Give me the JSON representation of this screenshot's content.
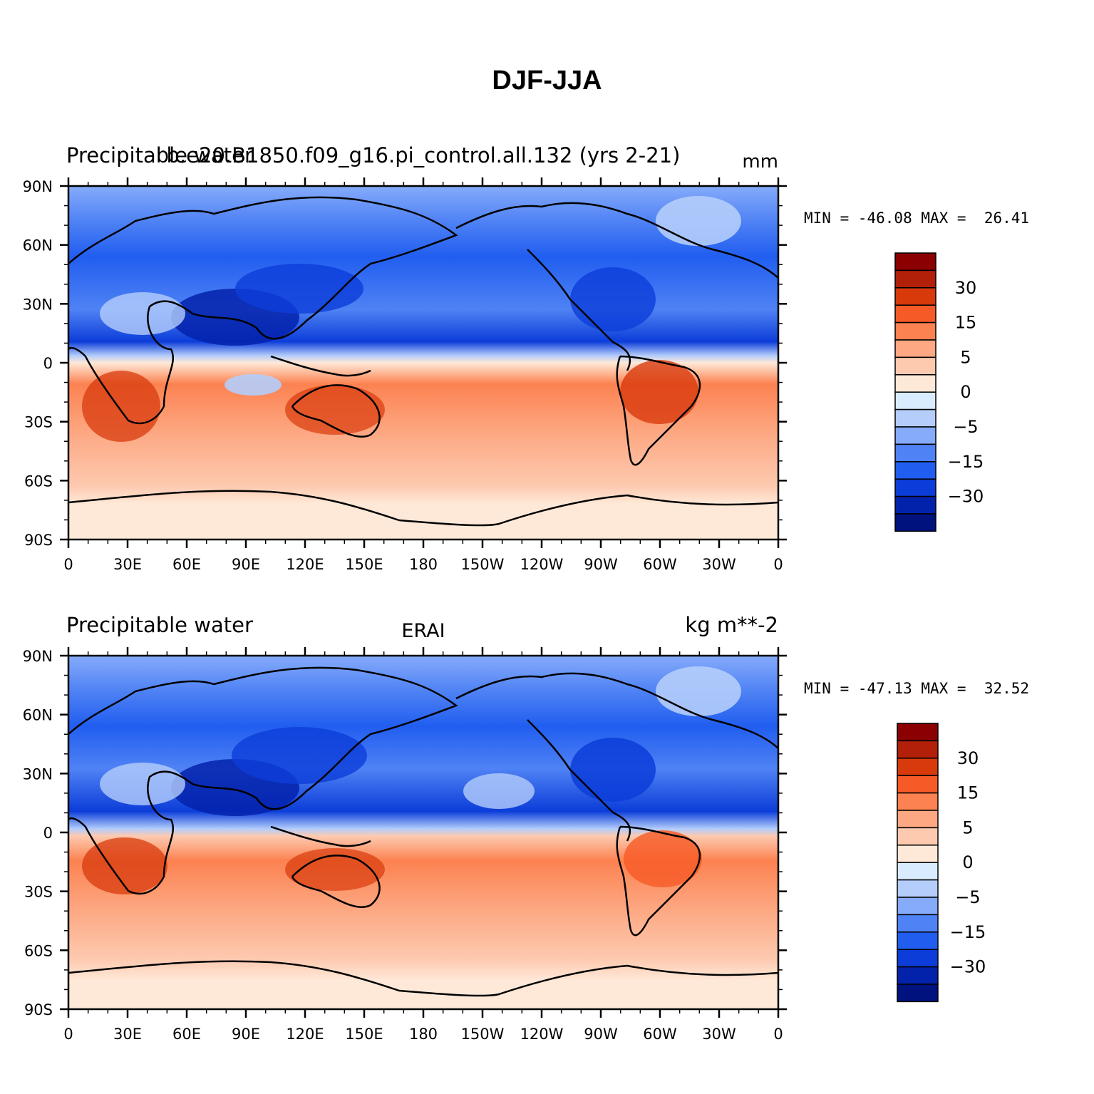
{
  "figure": {
    "title": "DJF-JJA"
  },
  "panels": [
    {
      "id": "model",
      "left_label": "Precipitable water",
      "center_label": "b.e20.B1850.f09_g16.pi_control.all.132 (yrs 2-21)",
      "right_label": "mm",
      "min_max": "MIN = -46.08 MAX =  26.41",
      "lat_ticks": [
        "90N",
        "60N",
        "30N",
        "0",
        "30S",
        "60S",
        "90S"
      ],
      "lon_ticks": [
        "0",
        "30E",
        "60E",
        "90E",
        "120E",
        "150E",
        "180",
        "150W",
        "120W",
        "90W",
        "60W",
        "30W",
        "0"
      ]
    },
    {
      "id": "erai",
      "left_label": "Precipitable water",
      "center_label": "ERAI",
      "right_label": "kg m**-2",
      "min_max": "MIN = -47.13 MAX =  32.52",
      "lat_ticks": [
        "90N",
        "60N",
        "30N",
        "0",
        "30S",
        "60S",
        "90S"
      ],
      "lon_ticks": [
        "0",
        "30E",
        "60E",
        "90E",
        "120E",
        "150E",
        "180",
        "150W",
        "120W",
        "90W",
        "60W",
        "30W",
        "0"
      ]
    }
  ],
  "colorbar": {
    "colors": [
      "#8b0000",
      "#b2200a",
      "#d83a0c",
      "#f65a26",
      "#fc8251",
      "#fda883",
      "#fdcab0",
      "#fee9d8",
      "#d9ecff",
      "#b4cdfb",
      "#86abfb",
      "#4f82f4",
      "#215ef0",
      "#0c3dd9",
      "#0322ab",
      "#00127e"
    ],
    "labels": [
      "30",
      "15",
      "5",
      "0",
      "-5",
      "-15",
      "-30"
    ]
  }
}
